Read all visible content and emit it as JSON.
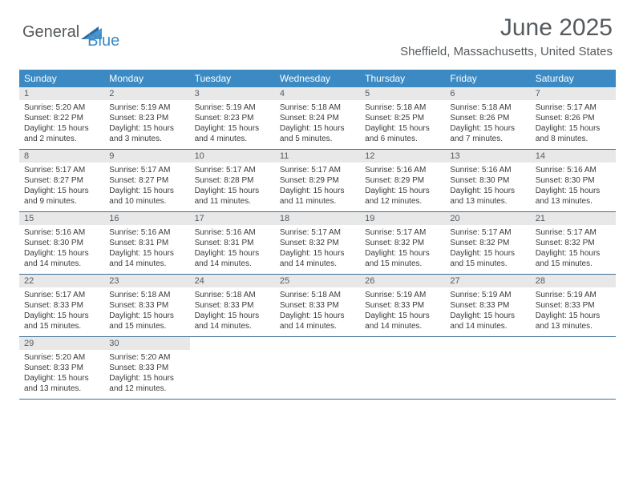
{
  "brand": {
    "part1": "General",
    "part2": "Blue"
  },
  "title": "June 2025",
  "subtitle": "Sheffield, Massachusetts, United States",
  "colors": {
    "header_bg": "#3b8ac4",
    "daynum_bg": "#e8e8e8",
    "text_muted": "#555a5e",
    "rule": "#3b6f99"
  },
  "dayNames": [
    "Sunday",
    "Monday",
    "Tuesday",
    "Wednesday",
    "Thursday",
    "Friday",
    "Saturday"
  ],
  "weeks": [
    [
      {
        "n": "1",
        "sr": "5:20 AM",
        "ss": "8:22 PM",
        "dl": "15 hours and 2 minutes."
      },
      {
        "n": "2",
        "sr": "5:19 AM",
        "ss": "8:23 PM",
        "dl": "15 hours and 3 minutes."
      },
      {
        "n": "3",
        "sr": "5:19 AM",
        "ss": "8:23 PM",
        "dl": "15 hours and 4 minutes."
      },
      {
        "n": "4",
        "sr": "5:18 AM",
        "ss": "8:24 PM",
        "dl": "15 hours and 5 minutes."
      },
      {
        "n": "5",
        "sr": "5:18 AM",
        "ss": "8:25 PM",
        "dl": "15 hours and 6 minutes."
      },
      {
        "n": "6",
        "sr": "5:18 AM",
        "ss": "8:26 PM",
        "dl": "15 hours and 7 minutes."
      },
      {
        "n": "7",
        "sr": "5:17 AM",
        "ss": "8:26 PM",
        "dl": "15 hours and 8 minutes."
      }
    ],
    [
      {
        "n": "8",
        "sr": "5:17 AM",
        "ss": "8:27 PM",
        "dl": "15 hours and 9 minutes."
      },
      {
        "n": "9",
        "sr": "5:17 AM",
        "ss": "8:27 PM",
        "dl": "15 hours and 10 minutes."
      },
      {
        "n": "10",
        "sr": "5:17 AM",
        "ss": "8:28 PM",
        "dl": "15 hours and 11 minutes."
      },
      {
        "n": "11",
        "sr": "5:17 AM",
        "ss": "8:29 PM",
        "dl": "15 hours and 11 minutes."
      },
      {
        "n": "12",
        "sr": "5:16 AM",
        "ss": "8:29 PM",
        "dl": "15 hours and 12 minutes."
      },
      {
        "n": "13",
        "sr": "5:16 AM",
        "ss": "8:30 PM",
        "dl": "15 hours and 13 minutes."
      },
      {
        "n": "14",
        "sr": "5:16 AM",
        "ss": "8:30 PM",
        "dl": "15 hours and 13 minutes."
      }
    ],
    [
      {
        "n": "15",
        "sr": "5:16 AM",
        "ss": "8:30 PM",
        "dl": "15 hours and 14 minutes."
      },
      {
        "n": "16",
        "sr": "5:16 AM",
        "ss": "8:31 PM",
        "dl": "15 hours and 14 minutes."
      },
      {
        "n": "17",
        "sr": "5:16 AM",
        "ss": "8:31 PM",
        "dl": "15 hours and 14 minutes."
      },
      {
        "n": "18",
        "sr": "5:17 AM",
        "ss": "8:32 PM",
        "dl": "15 hours and 14 minutes."
      },
      {
        "n": "19",
        "sr": "5:17 AM",
        "ss": "8:32 PM",
        "dl": "15 hours and 15 minutes."
      },
      {
        "n": "20",
        "sr": "5:17 AM",
        "ss": "8:32 PM",
        "dl": "15 hours and 15 minutes."
      },
      {
        "n": "21",
        "sr": "5:17 AM",
        "ss": "8:32 PM",
        "dl": "15 hours and 15 minutes."
      }
    ],
    [
      {
        "n": "22",
        "sr": "5:17 AM",
        "ss": "8:33 PM",
        "dl": "15 hours and 15 minutes."
      },
      {
        "n": "23",
        "sr": "5:18 AM",
        "ss": "8:33 PM",
        "dl": "15 hours and 15 minutes."
      },
      {
        "n": "24",
        "sr": "5:18 AM",
        "ss": "8:33 PM",
        "dl": "15 hours and 14 minutes."
      },
      {
        "n": "25",
        "sr": "5:18 AM",
        "ss": "8:33 PM",
        "dl": "15 hours and 14 minutes."
      },
      {
        "n": "26",
        "sr": "5:19 AM",
        "ss": "8:33 PM",
        "dl": "15 hours and 14 minutes."
      },
      {
        "n": "27",
        "sr": "5:19 AM",
        "ss": "8:33 PM",
        "dl": "15 hours and 14 minutes."
      },
      {
        "n": "28",
        "sr": "5:19 AM",
        "ss": "8:33 PM",
        "dl": "15 hours and 13 minutes."
      }
    ],
    [
      {
        "n": "29",
        "sr": "5:20 AM",
        "ss": "8:33 PM",
        "dl": "15 hours and 13 minutes."
      },
      {
        "n": "30",
        "sr": "5:20 AM",
        "ss": "8:33 PM",
        "dl": "15 hours and 12 minutes."
      },
      null,
      null,
      null,
      null,
      null
    ]
  ],
  "labels": {
    "sunrise": "Sunrise: ",
    "sunset": "Sunset: ",
    "daylight": "Daylight: "
  }
}
